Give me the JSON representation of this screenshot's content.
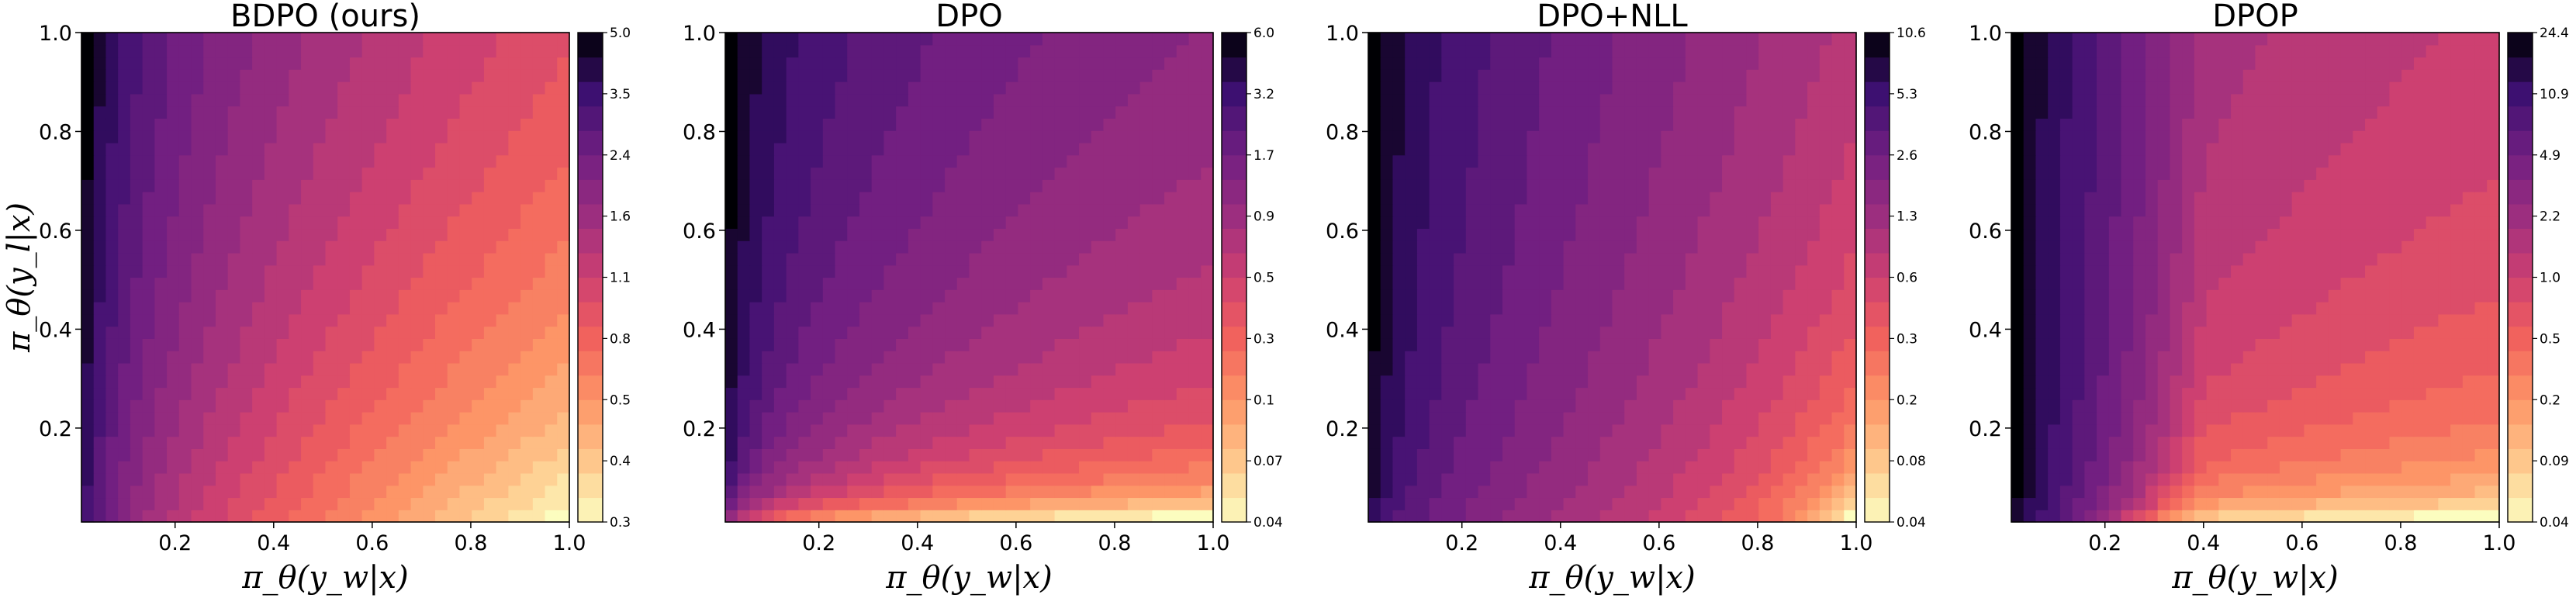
{
  "chart_data": [
    {
      "type": "heatmap",
      "title": "BDPO (ours)",
      "xlabel": "π_θ(y_w|x)",
      "ylabel": "π_θ(y_l|x)",
      "xlim": [
        0.01,
        1.0
      ],
      "ylim": [
        0.01,
        1.0
      ],
      "xticks": [
        "0.2",
        "0.4",
        "0.6",
        "0.8",
        "1.0"
      ],
      "yticks": [
        "0.2",
        "0.4",
        "0.6",
        "0.8",
        "1.0"
      ],
      "colorbar_ticks": [
        "0.3",
        "0.4",
        "0.5",
        "0.8",
        "1.1",
        "1.6",
        "2.4",
        "3.5",
        "5.0"
      ],
      "colormap": "magma_r",
      "contour_levels": 20
    },
    {
      "type": "heatmap",
      "title": "DPO",
      "xlabel": "π_θ(y_w|x)",
      "ylabel": "",
      "xlim": [
        0.01,
        1.0
      ],
      "ylim": [
        0.01,
        1.0
      ],
      "xticks": [
        "0.2",
        "0.4",
        "0.6",
        "0.8",
        "1.0"
      ],
      "yticks": [
        "0.2",
        "0.4",
        "0.6",
        "0.8",
        "1.0"
      ],
      "colorbar_ticks": [
        "0.04",
        "0.07",
        "0.1",
        "0.3",
        "0.5",
        "0.9",
        "1.7",
        "3.2",
        "6.0"
      ],
      "colormap": "magma_r",
      "contour_levels": 20
    },
    {
      "type": "heatmap",
      "title": "DPO+NLL",
      "xlabel": "π_θ(y_w|x)",
      "ylabel": "",
      "xlim": [
        0.01,
        1.0
      ],
      "ylim": [
        0.01,
        1.0
      ],
      "xticks": [
        "0.2",
        "0.4",
        "0.6",
        "0.8",
        "1.0"
      ],
      "yticks": [
        "0.2",
        "0.4",
        "0.6",
        "0.8",
        "1.0"
      ],
      "colorbar_ticks": [
        "0.04",
        "0.08",
        "0.2",
        "0.3",
        "0.6",
        "1.3",
        "2.6",
        "5.3",
        "10.6"
      ],
      "colormap": "magma_r",
      "contour_levels": 20
    },
    {
      "type": "heatmap",
      "title": "DPOP",
      "xlabel": "π_θ(y_w|x)",
      "ylabel": "",
      "xlim": [
        0.01,
        1.0
      ],
      "ylim": [
        0.01,
        1.0
      ],
      "xticks": [
        "0.2",
        "0.4",
        "0.6",
        "0.8",
        "1.0"
      ],
      "yticks": [
        "0.2",
        "0.4",
        "0.6",
        "0.8",
        "1.0"
      ],
      "colorbar_ticks": [
        "0.04",
        "0.09",
        "0.2",
        "0.5",
        "1.0",
        "2.2",
        "4.9",
        "10.9",
        "24.4"
      ],
      "colormap": "magma_r",
      "contour_levels": 20
    }
  ]
}
